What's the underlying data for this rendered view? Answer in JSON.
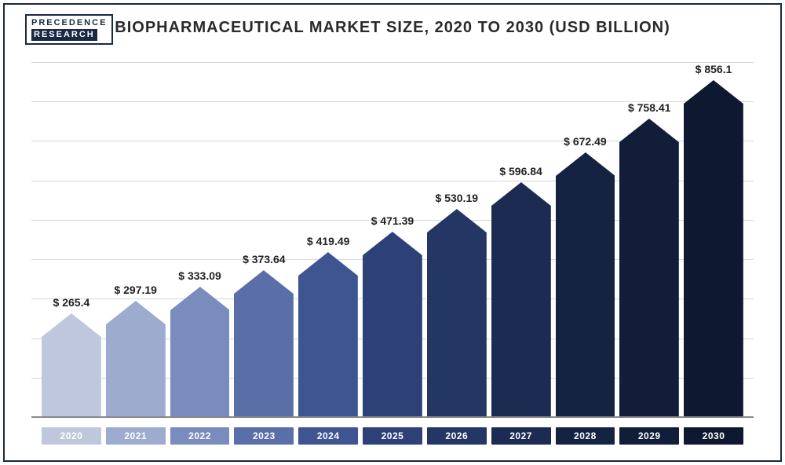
{
  "logo": {
    "line1": "PRECEDENCE",
    "line2": "RESEARCH"
  },
  "title": "BIOPHARMACEUTICAL MARKET SIZE, 2020 TO 2030 (USD BILLION)",
  "chart": {
    "type": "bar",
    "ymax": 900,
    "grid_count": 9,
    "grid_color": "#d8d8d8",
    "axis_color": "#888888",
    "background_color": "#ffffff",
    "bar_shape": "arrow",
    "arrow_head_h": 30,
    "label_fontsize": 14,
    "label_color": "#222222",
    "xlabel_fontsize": 12,
    "xlabel_text_color": "#ffffff",
    "data": [
      {
        "year": "2020",
        "value": 265.4,
        "label": "$ 265.4",
        "color": "#bec7dc"
      },
      {
        "year": "2021",
        "value": 297.19,
        "label": "$ 297.19",
        "color": "#9cabce"
      },
      {
        "year": "2022",
        "value": 333.09,
        "label": "$ 333.09",
        "color": "#7a8cbd"
      },
      {
        "year": "2023",
        "value": 373.64,
        "label": "$ 373.64",
        "color": "#5a6fa8"
      },
      {
        "year": "2024",
        "value": 419.49,
        "label": "$ 419.49",
        "color": "#3e5592"
      },
      {
        "year": "2025",
        "value": 471.39,
        "label": "$ 471.39",
        "color": "#2d4178"
      },
      {
        "year": "2026",
        "value": 530.19,
        "label": "$ 530.19",
        "color": "#243663"
      },
      {
        "year": "2027",
        "value": 596.84,
        "label": "$ 596.84",
        "color": "#1c2b52"
      },
      {
        "year": "2028",
        "value": 672.49,
        "label": "$ 672.49",
        "color": "#152342"
      },
      {
        "year": "2029",
        "value": 758.41,
        "label": "$ 758.41",
        "color": "#111d39"
      },
      {
        "year": "2030",
        "value": 856.1,
        "label": "$ 856.1",
        "color": "#0e1830"
      }
    ]
  }
}
